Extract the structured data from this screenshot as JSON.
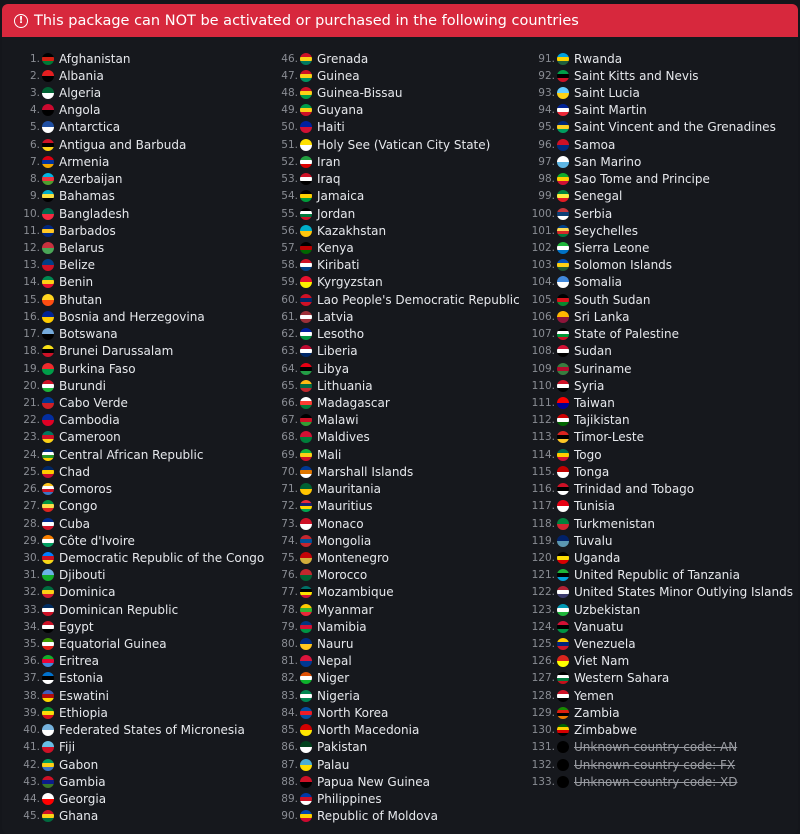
{
  "header": {
    "icon": "alert-circle-icon",
    "text": "This package can NOT be activated or purchased in the following countries",
    "color": "#d7283d"
  },
  "countries": [
    [
      "Afghanistan",
      "#000",
      "#d32011",
      "#007a36"
    ],
    [
      "Albania",
      "#e41e20",
      "#000"
    ],
    [
      "Algeria",
      "#006233",
      "#fff"
    ],
    [
      "Angola",
      "#cc092f",
      "#000"
    ],
    [
      "Antarctica",
      "#1f4fa3",
      "#fff"
    ],
    [
      "Antigua and Barbuda",
      "#ce1126",
      "#000",
      "#fcd116"
    ],
    [
      "Armenia",
      "#d90012",
      "#0033a0",
      "#f2a800"
    ],
    [
      "Azerbaijan",
      "#00b5e2",
      "#ef3340",
      "#509e2f"
    ],
    [
      "Bahamas",
      "#00abc9",
      "#fae042",
      "#000"
    ],
    [
      "Bangladesh",
      "#006a4e",
      "#f42a41"
    ],
    [
      "Barbados",
      "#00267f",
      "#ffc726",
      "#00267f"
    ],
    [
      "Belarus",
      "#c8313e",
      "#4aa657"
    ],
    [
      "Belize",
      "#003f87",
      "#ce1126"
    ],
    [
      "Benin",
      "#008751",
      "#fcd116",
      "#e8112d"
    ],
    [
      "Bhutan",
      "#ffd520",
      "#ff4e12"
    ],
    [
      "Bosnia and Herzegovina",
      "#002395",
      "#fecb00"
    ],
    [
      "Botswana",
      "#75aadb",
      "#000"
    ],
    [
      "Brunei Darussalam",
      "#f7e017",
      "#000",
      "#cf1126"
    ],
    [
      "Burkina Faso",
      "#ef2b2d",
      "#009e49"
    ],
    [
      "Burundi",
      "#ce1126",
      "#fff",
      "#1eb53a"
    ],
    [
      "Cabo Verde",
      "#003893",
      "#cf2027"
    ],
    [
      "Cambodia",
      "#032ea1",
      "#e00025"
    ],
    [
      "Cameroon",
      "#007a5e",
      "#ce1126",
      "#fcd116"
    ],
    [
      "Central African Republic",
      "#003082",
      "#fff",
      "#289728",
      "#ffce00"
    ],
    [
      "Chad",
      "#002664",
      "#fecb00",
      "#c60c30"
    ],
    [
      "Comoros",
      "#ffc61e",
      "#fff",
      "#ce1126",
      "#3a75c4"
    ],
    [
      "Congo",
      "#009543",
      "#fbde4a",
      "#dc241f"
    ],
    [
      "Cuba",
      "#002a8f",
      "#fff",
      "#cf142b"
    ],
    [
      "Côte d'Ivoire",
      "#f77f00",
      "#fff",
      "#009e60"
    ],
    [
      "Democratic Republic of the Congo",
      "#007fff",
      "#ce1021",
      "#f7d618"
    ],
    [
      "Djibouti",
      "#6ab2e7",
      "#12ad2b"
    ],
    [
      "Dominica",
      "#006b3f",
      "#fcd116",
      "#d41c30"
    ],
    [
      "Dominican Republic",
      "#002d62",
      "#fff",
      "#ce1126"
    ],
    [
      "Egypt",
      "#ce1126",
      "#fff",
      "#000"
    ],
    [
      "Equatorial Guinea",
      "#3e9a00",
      "#fff",
      "#e32118"
    ],
    [
      "Eritrea",
      "#12ad2b",
      "#ea0437",
      "#4189dd"
    ],
    [
      "Estonia",
      "#0072ce",
      "#000",
      "#fff"
    ],
    [
      "Eswatini",
      "#3e5eb9",
      "#b10c0c",
      "#ffd900"
    ],
    [
      "Ethiopia",
      "#078930",
      "#fcdd09",
      "#da121a"
    ],
    [
      "Federated States of Micronesia",
      "#75b2dd",
      "#fff"
    ],
    [
      "Fiji",
      "#68bfe5",
      "#ce1126"
    ],
    [
      "Gabon",
      "#009e60",
      "#fcd116",
      "#3a75c4"
    ],
    [
      "Gambia",
      "#ce1126",
      "#0c1c8c",
      "#3a7728"
    ],
    [
      "Georgia",
      "#fff",
      "#ff0000"
    ],
    [
      "Ghana",
      "#ce1126",
      "#fcd116",
      "#006b3f"
    ],
    [
      "Grenada",
      "#ce1126",
      "#fcd116",
      "#007a5e"
    ],
    [
      "Guinea",
      "#ce1126",
      "#fcd116",
      "#009460"
    ],
    [
      "Guinea-Bissau",
      "#ce1126",
      "#fcd116",
      "#009e49"
    ],
    [
      "Guyana",
      "#009e49",
      "#fcd116",
      "#ce1126"
    ],
    [
      "Haiti",
      "#00209f",
      "#d21034"
    ],
    [
      "Holy See (Vatican City State)",
      "#ffe000",
      "#fff"
    ],
    [
      "Iran",
      "#239f40",
      "#fff",
      "#da0000"
    ],
    [
      "Iraq",
      "#ce1126",
      "#fff",
      "#000"
    ],
    [
      "Jamaica",
      "#000",
      "#fed100",
      "#009b3a"
    ],
    [
      "Jordan",
      "#000",
      "#fff",
      "#007a3d",
      "#ce1126"
    ],
    [
      "Kazakhstan",
      "#00afca",
      "#fec50c"
    ],
    [
      "Kenya",
      "#000",
      "#bb0000",
      "#006600"
    ],
    [
      "Kiribati",
      "#ce1126",
      "#fff",
      "#003f87"
    ],
    [
      "Kyrgyzstan",
      "#e8112d",
      "#ffef00"
    ],
    [
      "Lao People's Democratic Republic",
      "#ce1126",
      "#002868",
      "#ce1126"
    ],
    [
      "Latvia",
      "#9e3039",
      "#fff",
      "#9e3039"
    ],
    [
      "Lesotho",
      "#00209f",
      "#fff",
      "#009543"
    ],
    [
      "Liberia",
      "#bf0a30",
      "#fff",
      "#002868"
    ],
    [
      "Libya",
      "#e70013",
      "#000",
      "#239e46"
    ],
    [
      "Lithuania",
      "#fdb913",
      "#006a44",
      "#c1272d"
    ],
    [
      "Madagascar",
      "#fff",
      "#fc3d32",
      "#007e3a"
    ],
    [
      "Malawi",
      "#000",
      "#ce1126",
      "#339e35"
    ],
    [
      "Maldives",
      "#d21034",
      "#007e3a"
    ],
    [
      "Mali",
      "#14b53a",
      "#fcd116",
      "#ce1126"
    ],
    [
      "Marshall Islands",
      "#003893",
      "#dd7500",
      "#fff"
    ],
    [
      "Mauritania",
      "#006233",
      "#ffc400"
    ],
    [
      "Mauritius",
      "#ea2839",
      "#1a206d",
      "#ffd500",
      "#00a551"
    ],
    [
      "Monaco",
      "#ce1126",
      "#fff"
    ],
    [
      "Mongolia",
      "#c4272f",
      "#015197",
      "#c4272f"
    ],
    [
      "Montenegro",
      "#c40308",
      "#d3ae3b"
    ],
    [
      "Morocco",
      "#c1272d",
      "#006233"
    ],
    [
      "Mozambique",
      "#007168",
      "#000",
      "#fce100",
      "#d21034"
    ],
    [
      "Myanmar",
      "#fecb00",
      "#34b233",
      "#ea2839"
    ],
    [
      "Namibia",
      "#003580",
      "#d21034",
      "#009543"
    ],
    [
      "Nauru",
      "#002b7f",
      "#ffc61e"
    ],
    [
      "Nepal",
      "#dc143c",
      "#003893"
    ],
    [
      "Niger",
      "#e05206",
      "#fff",
      "#0db02b"
    ],
    [
      "Nigeria",
      "#008751",
      "#fff",
      "#008751"
    ],
    [
      "North Korea",
      "#024fa2",
      "#ed1c27",
      "#024fa2"
    ],
    [
      "North Macedonia",
      "#d20000",
      "#ffe600"
    ],
    [
      "Pakistan",
      "#01411c",
      "#fff"
    ],
    [
      "Palau",
      "#4aadd6",
      "#ffde00"
    ],
    [
      "Papua New Guinea",
      "#ce1126",
      "#000"
    ],
    [
      "Philippines",
      "#0038a8",
      "#ce1126",
      "#fff"
    ],
    [
      "Republic of Moldova",
      "#0046ae",
      "#ffd200",
      "#cc092f"
    ],
    [
      "Rwanda",
      "#00a1de",
      "#fad201",
      "#20603d"
    ],
    [
      "Saint Kitts and Nevis",
      "#009e49",
      "#000",
      "#ce1126"
    ],
    [
      "Saint Lucia",
      "#66ccff",
      "#fcd116"
    ],
    [
      "Saint Martin",
      "#002395",
      "#fff",
      "#ed2939"
    ],
    [
      "Saint Vincent and the Grenadines",
      "#002674",
      "#fcd022",
      "#009e60"
    ],
    [
      "Samoa",
      "#ce1126",
      "#002b7f"
    ],
    [
      "San Marino",
      "#fff",
      "#5eb6e4"
    ],
    [
      "Sao Tome and Principe",
      "#12ad2b",
      "#ffce00",
      "#d21034"
    ],
    [
      "Senegal",
      "#00853f",
      "#fdef42",
      "#e31b23"
    ],
    [
      "Serbia",
      "#c6363c",
      "#0c4076",
      "#fff"
    ],
    [
      "Seychelles",
      "#003f87",
      "#fcd856",
      "#d62828",
      "#007a3d"
    ],
    [
      "Sierra Leone",
      "#1eb53a",
      "#fff",
      "#0072c6"
    ],
    [
      "Solomon Islands",
      "#0051ba",
      "#fcd116",
      "#215b33"
    ],
    [
      "Somalia",
      "#4189dd",
      "#fff"
    ],
    [
      "South Sudan",
      "#000",
      "#da121a",
      "#078930"
    ],
    [
      "Sri Lanka",
      "#ffb700",
      "#8d153a"
    ],
    [
      "State of Palestine",
      "#000",
      "#fff",
      "#009736",
      "#ce1126"
    ],
    [
      "Sudan",
      "#d21034",
      "#fff",
      "#000"
    ],
    [
      "Suriname",
      "#377e3f",
      "#b40a2d",
      "#377e3f"
    ],
    [
      "Syria",
      "#ce1126",
      "#fff",
      "#000"
    ],
    [
      "Taiwan",
      "#fe0000",
      "#000095"
    ],
    [
      "Tajikistan",
      "#cc0000",
      "#fff",
      "#006600"
    ],
    [
      "Timor-Leste",
      "#dc241f",
      "#000",
      "#ffc726"
    ],
    [
      "Togo",
      "#006a4e",
      "#ffce00",
      "#d21034"
    ],
    [
      "Tonga",
      "#c10000",
      "#fff"
    ],
    [
      "Trinidad and Tobago",
      "#ce1126",
      "#000",
      "#fff"
    ],
    [
      "Tunisia",
      "#e70013",
      "#fff"
    ],
    [
      "Turkmenistan",
      "#00843d",
      "#d22630"
    ],
    [
      "Tuvalu",
      "#012169",
      "#5b97b1"
    ],
    [
      "Uganda",
      "#000",
      "#fcdc04",
      "#d90000"
    ],
    [
      "United Republic of Tanzania",
      "#1eb53a",
      "#000",
      "#00a3dd"
    ],
    [
      "United States Minor Outlying Islands",
      "#b22234",
      "#fff",
      "#3c3b6e"
    ],
    [
      "Uzbekistan",
      "#0099b5",
      "#fff",
      "#1eb53a"
    ],
    [
      "Vanuatu",
      "#d21034",
      "#000",
      "#009543"
    ],
    [
      "Venezuela",
      "#ffcc00",
      "#00247d",
      "#cf142b"
    ],
    [
      "Viet Nam",
      "#da251d",
      "#ffff00"
    ],
    [
      "Western Sahara",
      "#000",
      "#fff",
      "#007a3d",
      "#c4111b"
    ],
    [
      "Yemen",
      "#ce1126",
      "#fff",
      "#000"
    ],
    [
      "Zambia",
      "#198a00",
      "#de2010",
      "#000",
      "#ef7d00"
    ],
    [
      "Zimbabwe",
      "#006400",
      "#ffd200",
      "#d40000",
      "#000"
    ],
    [
      "Unknown country code: AN",
      "#000"
    ],
    [
      "Unknown country code: FX",
      "#000"
    ],
    [
      "Unknown country code: XD",
      "#000"
    ]
  ],
  "unknown_from": 131
}
